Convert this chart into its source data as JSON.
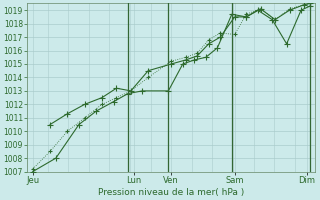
{
  "background_color": "#cceaea",
  "grid_major_color": "#aacccc",
  "grid_minor_color": "#bbdddd",
  "line_color": "#2d6a2d",
  "marker_color": "#2d6a2d",
  "xlabel": "Pression niveau de la mer( hPa )",
  "ylim": [
    1007,
    1019.5
  ],
  "ytick_min": 1007,
  "ytick_max": 1019,
  "xlim_min": 0,
  "xlim_max": 100,
  "day_labels": [
    "Jeu",
    "Lun",
    "Ven",
    "Sam",
    "Dim"
  ],
  "day_positions": [
    2,
    37,
    50,
    72,
    97
  ],
  "vline_positions": [
    35,
    49,
    71,
    98
  ],
  "vline_color": "#336633",
  "series": [
    {
      "x": [
        2,
        10,
        18,
        24,
        30,
        35,
        40,
        49,
        54,
        58,
        62,
        66,
        71,
        76,
        80,
        85,
        90,
        95,
        98
      ],
      "y": [
        1007.0,
        1008.0,
        1010.5,
        1011.5,
        1012.2,
        1012.8,
        1013.0,
        1013.0,
        1015.0,
        1015.3,
        1015.5,
        1016.2,
        1018.7,
        1018.5,
        1019.0,
        1018.3,
        1016.5,
        1019.0,
        1019.3
      ],
      "style": "-",
      "marker": "+",
      "markersize": 4.0,
      "linewidth": 0.8,
      "zorder": 3
    },
    {
      "x": [
        8,
        14,
        20,
        26,
        31,
        36,
        42,
        50,
        55,
        59,
        63,
        67,
        72,
        76,
        81,
        86,
        91,
        96,
        98
      ],
      "y": [
        1010.5,
        1011.3,
        1012.0,
        1012.5,
        1013.2,
        1013.0,
        1014.5,
        1015.0,
        1015.3,
        1015.6,
        1016.5,
        1017.0,
        1018.5,
        1018.5,
        1019.1,
        1018.3,
        1019.0,
        1019.4,
        1019.5
      ],
      "style": "-",
      "marker": "+",
      "markersize": 4.0,
      "linewidth": 0.8,
      "zorder": 3
    },
    {
      "x": [
        2,
        8,
        14,
        20,
        26,
        31,
        36,
        42,
        50,
        55,
        59,
        63,
        67,
        72,
        76,
        81,
        86,
        91,
        96,
        98
      ],
      "y": [
        1007.2,
        1008.5,
        1010.0,
        1011.0,
        1012.0,
        1012.5,
        1013.0,
        1014.0,
        1015.2,
        1015.5,
        1015.8,
        1016.8,
        1017.3,
        1017.2,
        1018.7,
        1019.1,
        1018.3,
        1019.1,
        1019.4,
        1019.5
      ],
      "style": ":",
      "marker": "+",
      "markersize": 3.5,
      "linewidth": 0.6,
      "zorder": 2
    }
  ],
  "yticks": [
    1007,
    1008,
    1009,
    1010,
    1011,
    1012,
    1013,
    1014,
    1015,
    1016,
    1017,
    1018,
    1019
  ],
  "ylabel_fontsize": 5.5,
  "xlabel_fontsize": 6.5,
  "xtick_fontsize": 6.0,
  "n_minor_x": 14
}
